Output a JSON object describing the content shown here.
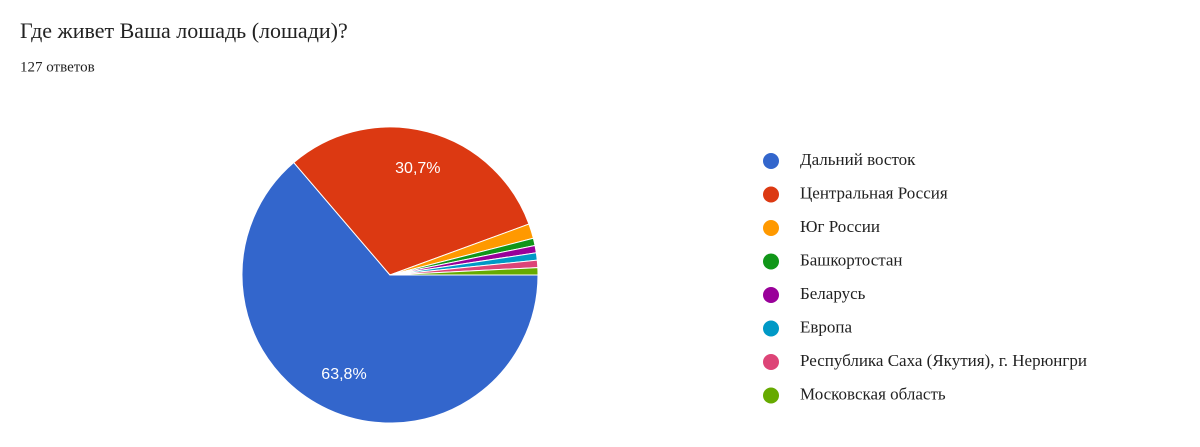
{
  "chart_data": {
    "type": "pie",
    "title": "Где живет Ваша лошадь (лошади)?",
    "subtitle": "127 ответов",
    "categories": [
      "Дальний восток",
      "Центральная Россия",
      "Юг России",
      "Башкортостан",
      "Беларусь",
      "Европа",
      "Республика Саха (Якутия), г. Нерюнгри",
      "Московская область"
    ],
    "values": [
      63.8,
      30.7,
      1.6,
      0.8,
      0.8,
      0.8,
      0.8,
      0.8
    ],
    "value_labels": [
      "63,8%",
      "30,7%",
      null,
      null,
      null,
      null,
      null,
      null
    ],
    "colors": [
      "#3366cc",
      "#dc3912",
      "#ff9900",
      "#109618",
      "#990099",
      "#0099c6",
      "#dd4477",
      "#66aa00"
    ],
    "legend": "right"
  }
}
